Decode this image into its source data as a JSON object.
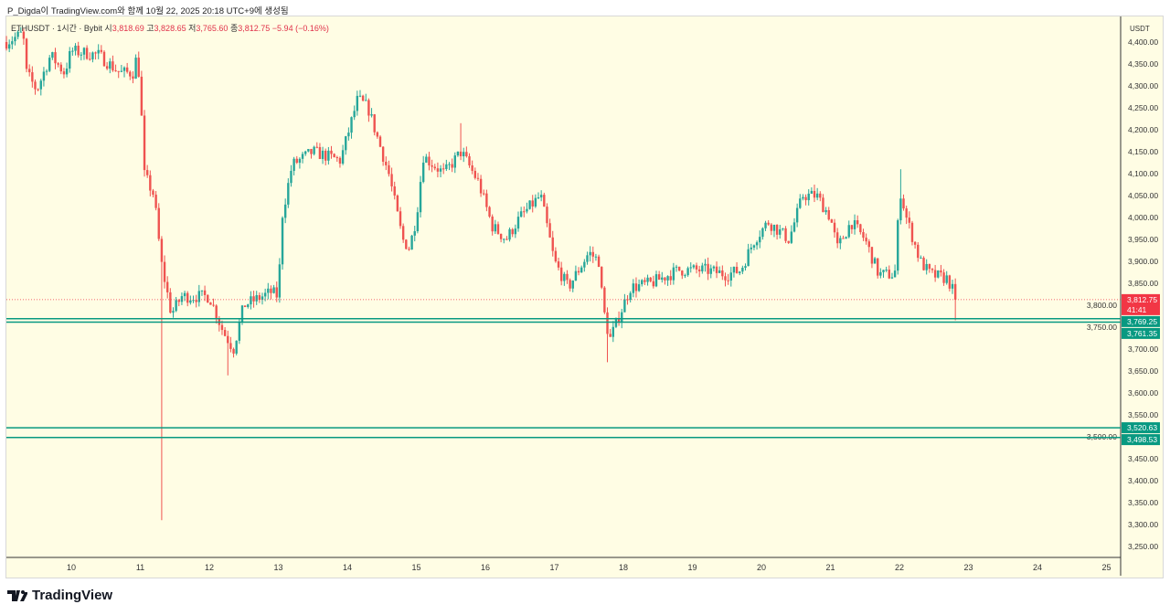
{
  "caption": "P_Digda이 TradingView.com와 함께 10월 22, 2025 20:18 UTC+9에 생성됨",
  "legend": {
    "symbol": "ETHUSDT",
    "sep": " · 1시간 · Bybit ",
    "o_label": "시",
    "o": "3,818.69",
    "h_label": "고",
    "h": "3,828.65",
    "l_label": "저",
    "l": "3,765.60",
    "c_label": "종",
    "c": "3,812.75",
    "change": "−5.94 (−0.16%)"
  },
  "currency": "USDT",
  "logo": "TradingView",
  "colors": {
    "up": "#26a69a",
    "down": "#ef5350",
    "bg": "#fffde4",
    "line": "#089981",
    "price": "#f23645"
  },
  "chart_data": {
    "type": "candlestick",
    "interval": "1h",
    "ylim": [
      3225,
      4425
    ],
    "y_ticks": [
      "4,400.00",
      "4,350.00",
      "4,300.00",
      "4,250.00",
      "4,200.00",
      "4,150.00",
      "4,100.00",
      "4,050.00",
      "4,000.00",
      "3,950.00",
      "3,900.00",
      "3,850.00",
      "3,800.00",
      "3,750.00",
      "3,700.00",
      "3,650.00",
      "3,600.00",
      "3,550.00",
      "3,500.00",
      "3,450.00",
      "3,400.00",
      "3,350.00",
      "3,300.00",
      "3,250.00"
    ],
    "y_tick_values": [
      4400,
      4350,
      4300,
      4250,
      4200,
      4150,
      4100,
      4050,
      4000,
      3950,
      3900,
      3850,
      3800,
      3750,
      3700,
      3650,
      3600,
      3550,
      3500,
      3450,
      3400,
      3350,
      3300,
      3250
    ],
    "x_ticks": [
      "10",
      "11",
      "12",
      "13",
      "14",
      "15",
      "16",
      "17",
      "18",
      "19",
      "20",
      "21",
      "22",
      "23",
      "24",
      "25"
    ],
    "x_tick_values": [
      10,
      11,
      12,
      13,
      14,
      15,
      16,
      17,
      18,
      19,
      20,
      21,
      22,
      23,
      24,
      25
    ],
    "xlim": [
      9.06,
      25.2
    ],
    "price_path": [
      [
        9.06,
        4400
      ],
      [
        9.3,
        4420
      ],
      [
        9.35,
        4330
      ],
      [
        9.5,
        4290
      ],
      [
        9.7,
        4370
      ],
      [
        9.9,
        4330
      ],
      [
        10.0,
        4380
      ],
      [
        10.4,
        4370
      ],
      [
        10.7,
        4330
      ],
      [
        10.9,
        4330
      ],
      [
        10.95,
        4370
      ],
      [
        11.0,
        4300
      ],
      [
        11.05,
        4100
      ],
      [
        11.2,
        4050
      ],
      [
        11.3,
        3900
      ],
      [
        11.45,
        3780
      ],
      [
        11.6,
        3820
      ],
      [
        12.0,
        3820
      ],
      [
        12.2,
        3740
      ],
      [
        12.35,
        3700
      ],
      [
        12.5,
        3800
      ],
      [
        12.9,
        3830
      ],
      [
        13.0,
        3820
      ],
      [
        13.05,
        4000
      ],
      [
        13.2,
        4120
      ],
      [
        13.5,
        4150
      ],
      [
        13.9,
        4130
      ],
      [
        14.15,
        4270
      ],
      [
        14.3,
        4250
      ],
      [
        14.6,
        4100
      ],
      [
        14.8,
        3950
      ],
      [
        14.9,
        3930
      ],
      [
        15.0,
        4000
      ],
      [
        15.1,
        4140
      ],
      [
        15.4,
        4100
      ],
      [
        15.65,
        4150
      ],
      [
        15.9,
        4080
      ],
      [
        16.1,
        3980
      ],
      [
        16.3,
        3950
      ],
      [
        16.5,
        4000
      ],
      [
        16.8,
        4050
      ],
      [
        17.0,
        3900
      ],
      [
        17.2,
        3840
      ],
      [
        17.5,
        3920
      ],
      [
        17.65,
        3900
      ],
      [
        17.7,
        3800
      ],
      [
        17.8,
        3720
      ],
      [
        17.95,
        3780
      ],
      [
        18.1,
        3840
      ],
      [
        18.4,
        3850
      ],
      [
        18.8,
        3880
      ],
      [
        19.2,
        3880
      ],
      [
        19.5,
        3870
      ],
      [
        19.7,
        3880
      ],
      [
        19.9,
        3950
      ],
      [
        20.1,
        3990
      ],
      [
        20.4,
        3950
      ],
      [
        20.6,
        4050
      ],
      [
        20.8,
        4050
      ],
      [
        21.0,
        4000
      ],
      [
        21.1,
        3930
      ],
      [
        21.3,
        3990
      ],
      [
        21.5,
        3950
      ],
      [
        21.7,
        3870
      ],
      [
        21.9,
        3870
      ],
      [
        21.95,
        3880
      ],
      [
        22.0,
        4070
      ],
      [
        22.1,
        4000
      ],
      [
        22.3,
        3900
      ],
      [
        22.45,
        3870
      ],
      [
        22.7,
        3860
      ],
      [
        22.83,
        3812.75
      ]
    ],
    "special_wicks": [
      [
        11.3,
        3310
      ],
      [
        22.0,
        4110
      ],
      [
        14.2,
        4290
      ],
      [
        15.65,
        4215
      ],
      [
        12.25,
        3640
      ],
      [
        17.78,
        3670
      ],
      [
        22.83,
        3765.6
      ]
    ],
    "current_price": {
      "value": 3812.75,
      "label": "3,812.75",
      "countdown": "41:41"
    },
    "horizontal_lines": [
      {
        "value": 3769.25,
        "label": "3,769.25"
      },
      {
        "value": 3761.35,
        "label": "3,761.35"
      },
      {
        "value": 3520.63,
        "label": "3,520.63"
      },
      {
        "value": 3498.53,
        "label": "3,498.53"
      }
    ]
  }
}
